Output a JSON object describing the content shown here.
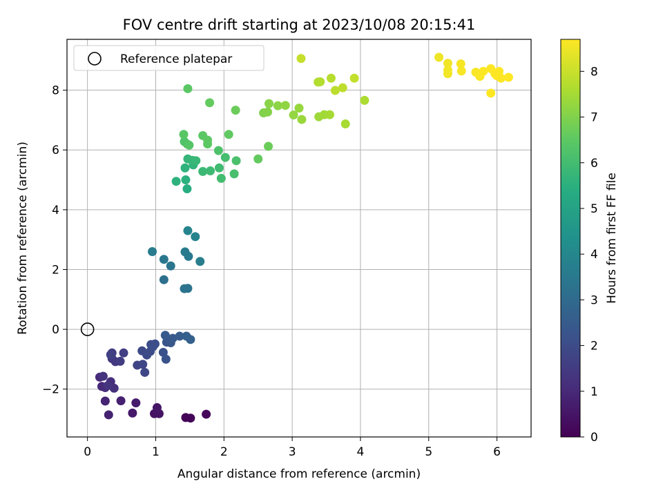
{
  "chart_data": {
    "type": "scatter",
    "title": "FOV centre drift starting at 2023/10/08 20:15:41",
    "xlabel": "Angular distance from reference (arcmin)",
    "ylabel": "Rotation from reference (arcmin)",
    "xlim": [
      -0.3,
      6.5
    ],
    "ylim": [
      -3.6,
      9.7
    ],
    "xticks": [
      0,
      1,
      2,
      3,
      4,
      5,
      6
    ],
    "yticks": [
      -2,
      0,
      2,
      4,
      6,
      8
    ],
    "grid": true,
    "legend": {
      "placement": "top-left",
      "entries": [
        "Reference platepar"
      ]
    },
    "reference_point": {
      "x": 0,
      "y": 0
    },
    "colorbar": {
      "label": "Hours from first FF file",
      "colormap": "viridis",
      "range": [
        0,
        8.7
      ],
      "ticks": [
        0,
        1,
        2,
        3,
        4,
        5,
        6,
        7,
        8
      ]
    },
    "points": [
      {
        "x": 1.44,
        "y": -2.95,
        "h": 0.1
      },
      {
        "x": 1.51,
        "y": -2.97,
        "h": 0.1
      },
      {
        "x": 1.74,
        "y": -2.84,
        "h": 0.15
      },
      {
        "x": 0.98,
        "y": -2.82,
        "h": 0.4
      },
      {
        "x": 1.05,
        "y": -2.82,
        "h": 0.45
      },
      {
        "x": 1.02,
        "y": -2.62,
        "h": 0.5
      },
      {
        "x": 0.66,
        "y": -2.8,
        "h": 0.6
      },
      {
        "x": 0.71,
        "y": -2.46,
        "h": 0.65
      },
      {
        "x": 0.49,
        "y": -2.39,
        "h": 0.8
      },
      {
        "x": 0.31,
        "y": -2.86,
        "h": 0.85
      },
      {
        "x": 0.26,
        "y": -2.4,
        "h": 0.9
      },
      {
        "x": 0.21,
        "y": -1.91,
        "h": 1.0
      },
      {
        "x": 0.18,
        "y": -1.6,
        "h": 1.05
      },
      {
        "x": 0.26,
        "y": -1.95,
        "h": 1.1
      },
      {
        "x": 0.34,
        "y": -1.75,
        "h": 1.15
      },
      {
        "x": 0.39,
        "y": -1.97,
        "h": 1.2
      },
      {
        "x": 0.23,
        "y": -1.57,
        "h": 1.25
      },
      {
        "x": 0.3,
        "y": -1.88,
        "h": 1.3
      },
      {
        "x": 0.36,
        "y": -0.98,
        "h": 1.4
      },
      {
        "x": 0.41,
        "y": -1.08,
        "h": 1.45
      },
      {
        "x": 0.36,
        "y": -0.79,
        "h": 1.5
      },
      {
        "x": 0.48,
        "y": -1.07,
        "h": 1.55
      },
      {
        "x": 0.53,
        "y": -0.79,
        "h": 1.6
      },
      {
        "x": 0.34,
        "y": -0.85,
        "h": 1.65
      },
      {
        "x": 0.73,
        "y": -1.2,
        "h": 1.75
      },
      {
        "x": 0.81,
        "y": -1.17,
        "h": 1.8
      },
      {
        "x": 0.84,
        "y": -1.44,
        "h": 1.85
      },
      {
        "x": 0.8,
        "y": -0.72,
        "h": 1.9
      },
      {
        "x": 0.87,
        "y": -0.86,
        "h": 1.95
      },
      {
        "x": 0.92,
        "y": -0.74,
        "h": 2.0
      },
      {
        "x": 0.93,
        "y": -0.51,
        "h": 2.05
      },
      {
        "x": 0.99,
        "y": -0.49,
        "h": 2.1
      },
      {
        "x": 0.96,
        "y": -0.58,
        "h": 2.1
      },
      {
        "x": 1.11,
        "y": -0.77,
        "h": 2.15
      },
      {
        "x": 1.15,
        "y": -1.0,
        "h": 2.2
      },
      {
        "x": 1.16,
        "y": -0.43,
        "h": 2.3
      },
      {
        "x": 1.22,
        "y": -0.45,
        "h": 2.35
      },
      {
        "x": 1.25,
        "y": -0.3,
        "h": 2.4
      },
      {
        "x": 1.14,
        "y": -0.2,
        "h": 2.45
      },
      {
        "x": 1.35,
        "y": -0.23,
        "h": 2.5
      },
      {
        "x": 1.45,
        "y": -0.23,
        "h": 2.6
      },
      {
        "x": 1.51,
        "y": -0.34,
        "h": 2.65
      },
      {
        "x": 1.12,
        "y": 1.66,
        "h": 3.2
      },
      {
        "x": 1.42,
        "y": 1.36,
        "h": 3.3
      },
      {
        "x": 1.47,
        "y": 1.37,
        "h": 3.3
      },
      {
        "x": 1.22,
        "y": 2.12,
        "h": 3.4
      },
      {
        "x": 1.12,
        "y": 2.34,
        "h": 3.45
      },
      {
        "x": 1.48,
        "y": 2.44,
        "h": 3.5
      },
      {
        "x": 1.43,
        "y": 2.59,
        "h": 3.55
      },
      {
        "x": 0.95,
        "y": 2.6,
        "h": 3.6
      },
      {
        "x": 1.65,
        "y": 2.27,
        "h": 3.7
      },
      {
        "x": 1.58,
        "y": 3.1,
        "h": 3.85
      },
      {
        "x": 1.47,
        "y": 3.3,
        "h": 3.9
      },
      {
        "x": 1.46,
        "y": 4.7,
        "h": 5.4
      },
      {
        "x": 1.44,
        "y": 5.0,
        "h": 5.5
      },
      {
        "x": 1.3,
        "y": 4.95,
        "h": 5.55
      },
      {
        "x": 1.43,
        "y": 5.4,
        "h": 5.6
      },
      {
        "x": 1.55,
        "y": 5.5,
        "h": 5.65
      },
      {
        "x": 1.47,
        "y": 5.7,
        "h": 5.7
      },
      {
        "x": 1.54,
        "y": 5.65,
        "h": 5.75
      },
      {
        "x": 1.59,
        "y": 5.64,
        "h": 5.8
      },
      {
        "x": 1.69,
        "y": 5.28,
        "h": 5.85
      },
      {
        "x": 1.8,
        "y": 5.3,
        "h": 5.9
      },
      {
        "x": 1.93,
        "y": 5.4,
        "h": 5.95
      },
      {
        "x": 1.96,
        "y": 5.05,
        "h": 6.0
      },
      {
        "x": 2.02,
        "y": 5.75,
        "h": 6.05
      },
      {
        "x": 2.15,
        "y": 5.2,
        "h": 6.1
      },
      {
        "x": 2.18,
        "y": 5.64,
        "h": 6.15
      },
      {
        "x": 1.92,
        "y": 5.98,
        "h": 6.2
      },
      {
        "x": 1.42,
        "y": 6.28,
        "h": 6.25
      },
      {
        "x": 1.46,
        "y": 6.2,
        "h": 6.3
      },
      {
        "x": 1.49,
        "y": 6.16,
        "h": 6.35
      },
      {
        "x": 1.41,
        "y": 6.52,
        "h": 6.4
      },
      {
        "x": 1.69,
        "y": 6.48,
        "h": 6.45
      },
      {
        "x": 1.76,
        "y": 6.2,
        "h": 6.5
      },
      {
        "x": 1.76,
        "y": 6.33,
        "h": 6.5
      },
      {
        "x": 2.07,
        "y": 6.52,
        "h": 6.55
      },
      {
        "x": 2.5,
        "y": 5.7,
        "h": 6.6
      },
      {
        "x": 2.65,
        "y": 6.12,
        "h": 6.7
      },
      {
        "x": 1.47,
        "y": 8.05,
        "h": 6.45
      },
      {
        "x": 1.79,
        "y": 7.58,
        "h": 6.6
      },
      {
        "x": 2.17,
        "y": 7.33,
        "h": 6.7
      },
      {
        "x": 2.58,
        "y": 7.24,
        "h": 7.0
      },
      {
        "x": 2.64,
        "y": 7.27,
        "h": 7.05
      },
      {
        "x": 2.66,
        "y": 7.55,
        "h": 7.1
      },
      {
        "x": 2.79,
        "y": 7.48,
        "h": 7.15
      },
      {
        "x": 2.9,
        "y": 7.49,
        "h": 7.2
      },
      {
        "x": 3.02,
        "y": 7.17,
        "h": 7.25
      },
      {
        "x": 3.1,
        "y": 7.4,
        "h": 7.3
      },
      {
        "x": 3.14,
        "y": 7.02,
        "h": 7.35
      },
      {
        "x": 3.39,
        "y": 7.11,
        "h": 7.4
      },
      {
        "x": 3.47,
        "y": 7.18,
        "h": 7.45
      },
      {
        "x": 3.55,
        "y": 7.18,
        "h": 7.5
      },
      {
        "x": 3.78,
        "y": 6.87,
        "h": 7.55
      },
      {
        "x": 4.06,
        "y": 7.66,
        "h": 7.6
      },
      {
        "x": 3.38,
        "y": 8.27,
        "h": 7.65
      },
      {
        "x": 3.41,
        "y": 8.28,
        "h": 7.7
      },
      {
        "x": 3.57,
        "y": 8.4,
        "h": 7.75
      },
      {
        "x": 3.63,
        "y": 7.99,
        "h": 7.8
      },
      {
        "x": 3.74,
        "y": 8.08,
        "h": 7.85
      },
      {
        "x": 3.91,
        "y": 8.4,
        "h": 7.9
      },
      {
        "x": 3.13,
        "y": 9.06,
        "h": 7.95
      },
      {
        "x": 5.15,
        "y": 9.1,
        "h": 8.5
      },
      {
        "x": 5.28,
        "y": 8.9,
        "h": 8.52
      },
      {
        "x": 5.28,
        "y": 8.55,
        "h": 8.55
      },
      {
        "x": 5.28,
        "y": 8.67,
        "h": 8.57
      },
      {
        "x": 5.47,
        "y": 8.88,
        "h": 8.6
      },
      {
        "x": 5.48,
        "y": 8.64,
        "h": 8.62
      },
      {
        "x": 5.69,
        "y": 8.6,
        "h": 8.64
      },
      {
        "x": 5.75,
        "y": 8.46,
        "h": 8.66
      },
      {
        "x": 5.8,
        "y": 8.63,
        "h": 8.68
      },
      {
        "x": 5.91,
        "y": 8.72,
        "h": 8.7
      },
      {
        "x": 5.97,
        "y": 8.55,
        "h": 8.7
      },
      {
        "x": 6.0,
        "y": 8.48,
        "h": 8.7
      },
      {
        "x": 6.03,
        "y": 8.63,
        "h": 8.7
      },
      {
        "x": 6.06,
        "y": 8.4,
        "h": 8.7
      },
      {
        "x": 6.17,
        "y": 8.43,
        "h": 8.7
      },
      {
        "x": 5.91,
        "y": 7.9,
        "h": 8.7
      }
    ]
  }
}
